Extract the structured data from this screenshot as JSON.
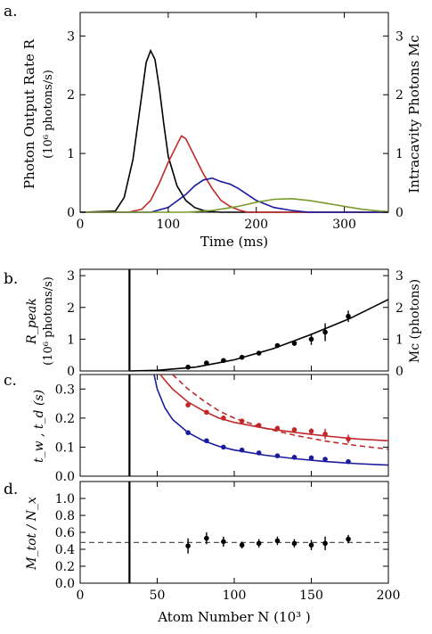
{
  "panel_labels": {
    "a": "a.",
    "b": "b.",
    "c": "c.",
    "d": "d."
  },
  "colors": {
    "black": "#000000",
    "red": "#c0282a",
    "blue": "#1a1aa0",
    "green": "#7a9a2a",
    "gray": "#555555"
  },
  "chart_data": [
    {
      "id": "a",
      "type": "line",
      "xlabel": "Time (ms)",
      "ylabel": "Photon Output Rate R",
      "ylabel_sub": "(10⁶ photons/s)",
      "ylabel_right": "Intracavity Photons Mc",
      "xlim": [
        0,
        350
      ],
      "ylim": [
        0,
        3.4
      ],
      "xticks": [
        0,
        100,
        200,
        300
      ],
      "yticks": [
        0,
        1,
        2,
        3
      ],
      "yticks_right": [
        0,
        1,
        2,
        3
      ],
      "grid": false,
      "series": [
        {
          "color": "#000000",
          "x": [
            0,
            40,
            50,
            60,
            70,
            75,
            80,
            85,
            90,
            95,
            100,
            110,
            120,
            130,
            140,
            150,
            160,
            350
          ],
          "values": [
            0,
            0.02,
            0.25,
            0.9,
            2.0,
            2.55,
            2.75,
            2.6,
            2.1,
            1.5,
            0.95,
            0.45,
            0.2,
            0.08,
            0.03,
            0.01,
            0,
            0
          ]
        },
        {
          "color": "#c0282a",
          "x": [
            0,
            55,
            70,
            80,
            90,
            100,
            110,
            115,
            120,
            125,
            130,
            140,
            150,
            160,
            170,
            180,
            190,
            350
          ],
          "values": [
            0,
            0,
            0.05,
            0.2,
            0.5,
            0.85,
            1.15,
            1.3,
            1.25,
            1.1,
            0.95,
            0.65,
            0.4,
            0.2,
            0.1,
            0.04,
            0,
            0
          ]
        },
        {
          "color": "#1a1aa0",
          "x": [
            0,
            80,
            100,
            120,
            130,
            140,
            150,
            160,
            170,
            180,
            190,
            200,
            220,
            240,
            260,
            350
          ],
          "values": [
            0,
            0,
            0.08,
            0.3,
            0.45,
            0.55,
            0.58,
            0.52,
            0.48,
            0.4,
            0.3,
            0.2,
            0.08,
            0.03,
            0,
            0
          ]
        },
        {
          "color": "#7a9a2a",
          "x": [
            0,
            120,
            150,
            180,
            200,
            220,
            240,
            260,
            280,
            300,
            320,
            340,
            350
          ],
          "values": [
            0,
            0,
            0.03,
            0.1,
            0.17,
            0.22,
            0.23,
            0.2,
            0.15,
            0.1,
            0.05,
            0.02,
            0.01
          ]
        }
      ]
    },
    {
      "id": "b",
      "type": "scatter",
      "ylabel": "R_peak",
      "ylabel_sub": "(10⁶ photons/s)",
      "ylabel_right": "Mc (photons)",
      "xlim": [
        0,
        200
      ],
      "ylim": [
        0,
        3.2
      ],
      "yticks": [
        0,
        1,
        2,
        3
      ],
      "yticks_right": [
        0,
        1,
        2,
        3
      ],
      "threshold_x": 32,
      "fit": {
        "color": "#000000",
        "x": [
          32,
          50,
          75,
          100,
          125,
          150,
          175,
          200
        ],
        "values": [
          0,
          0.02,
          0.12,
          0.35,
          0.7,
          1.15,
          1.65,
          2.25
        ]
      },
      "points": {
        "color": "#000000",
        "x": [
          70,
          82,
          93,
          105,
          116,
          128,
          139,
          150,
          159,
          174
        ],
        "values": [
          0.12,
          0.25,
          0.33,
          0.43,
          0.56,
          0.8,
          0.87,
          1.0,
          1.22,
          1.72
        ],
        "errors": [
          0.03,
          0.05,
          0.05,
          0.05,
          0.06,
          0.07,
          0.08,
          0.18,
          0.28,
          0.18
        ]
      }
    },
    {
      "id": "c",
      "type": "scatter",
      "ylabel": "t_w , t_d (s)",
      "xlim": [
        0,
        200
      ],
      "ylim": [
        0,
        0.35
      ],
      "yticks": [
        0,
        0.1,
        0.2,
        0.3
      ],
      "series": [
        {
          "color": "#c0282a",
          "style": "solid",
          "fit": {
            "x": [
              52,
              55,
              60,
              70,
              80,
              90,
              100,
              120,
              140,
              160,
              180,
              200
            ],
            "values": [
              0.35,
              0.33,
              0.3,
              0.255,
              0.225,
              0.2,
              0.185,
              0.165,
              0.15,
              0.138,
              0.128,
              0.122
            ]
          },
          "points": {
            "x": [
              70,
              82,
              93,
              105,
              116,
              128,
              139,
              150,
              159,
              174
            ],
            "values": [
              0.245,
              0.22,
              0.2,
              0.19,
              0.175,
              0.165,
              0.16,
              0.155,
              0.145,
              0.128
            ],
            "errors": [
              0.008,
              0.008,
              0.008,
              0.008,
              0.008,
              0.008,
              0.008,
              0.01,
              0.018,
              0.015
            ]
          }
        },
        {
          "color": "#c0282a",
          "style": "dashed",
          "fit": {
            "x": [
              60,
              70,
              80,
              90,
              100,
              120,
              140,
              160,
              180,
              200
            ],
            "values": [
              0.35,
              0.3,
              0.26,
              0.225,
              0.2,
              0.165,
              0.14,
              0.12,
              0.105,
              0.093
            ]
          }
        },
        {
          "color": "#1a1aa0",
          "style": "solid",
          "fit": {
            "x": [
              48,
              50,
              55,
              60,
              70,
              80,
              90,
              100,
              120,
              140,
              160,
              180,
              200
            ],
            "values": [
              0.35,
              0.3,
              0.235,
              0.195,
              0.15,
              0.122,
              0.103,
              0.09,
              0.072,
              0.06,
              0.05,
              0.043,
              0.038
            ]
          },
          "points": {
            "x": [
              70,
              82,
              93,
              105,
              116,
              128,
              139,
              150,
              159,
              174
            ],
            "values": [
              0.15,
              0.122,
              0.1,
              0.09,
              0.08,
              0.07,
              0.065,
              0.063,
              0.058,
              0.05
            ]
          }
        }
      ]
    },
    {
      "id": "d",
      "type": "scatter",
      "xlabel": "Atom Number N (10³ )",
      "ylabel": "M_tot / N_x",
      "xlim": [
        0,
        200
      ],
      "ylim": [
        0,
        1.2
      ],
      "xticks": [
        0,
        50,
        100,
        150,
        200
      ],
      "yticks": [
        0.0,
        0.2,
        0.4,
        0.6,
        0.8,
        1.0
      ],
      "reference_y": 0.48,
      "threshold_x": 32,
      "points": {
        "color": "#000000",
        "x": [
          70,
          82,
          93,
          105,
          116,
          128,
          139,
          150,
          159,
          174
        ],
        "values": [
          0.44,
          0.53,
          0.49,
          0.45,
          0.47,
          0.5,
          0.47,
          0.45,
          0.47,
          0.52
        ],
        "errors": [
          0.09,
          0.07,
          0.06,
          0.04,
          0.05,
          0.05,
          0.05,
          0.06,
          0.08,
          0.05
        ]
      }
    }
  ]
}
